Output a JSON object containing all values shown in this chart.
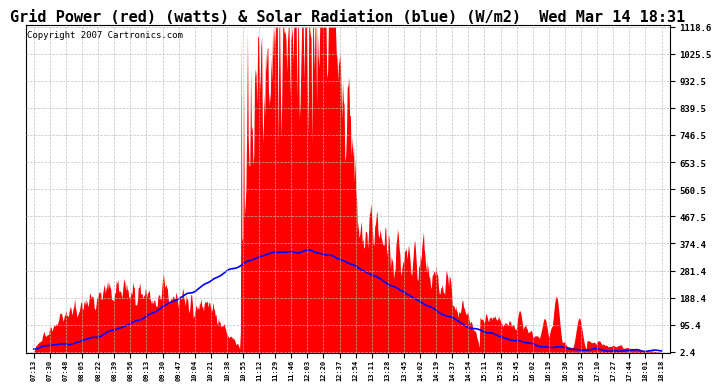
{
  "title": "Grid Power (red) (watts) & Solar Radiation (blue) (W/m2)  Wed Mar 14 18:31",
  "copyright": "Copyright 2007 Cartronics.com",
  "yticks": [
    2.4,
    95.4,
    188.4,
    281.4,
    374.4,
    467.5,
    560.5,
    653.5,
    746.5,
    839.5,
    932.5,
    1025.5,
    1118.6
  ],
  "ymin": 0,
  "ymax": 1118.6,
  "background_color": "#ffffff",
  "grid_color": "#bbbbbb",
  "red_color": "#ff0000",
  "blue_color": "#0000ff",
  "title_fontsize": 11,
  "copyright_fontsize": 6.5,
  "xtick_labels": [
    "07:13",
    "07:30",
    "07:48",
    "08:05",
    "08:22",
    "08:39",
    "08:56",
    "09:13",
    "09:30",
    "09:47",
    "10:04",
    "10:21",
    "10:38",
    "10:55",
    "11:12",
    "11:29",
    "11:46",
    "12:03",
    "12:20",
    "12:37",
    "12:54",
    "13:11",
    "13:28",
    "13:45",
    "14:02",
    "14:19",
    "14:37",
    "14:54",
    "15:11",
    "15:28",
    "15:45",
    "16:02",
    "16:19",
    "16:36",
    "16:53",
    "17:10",
    "17:27",
    "17:44",
    "18:01",
    "18:18"
  ]
}
